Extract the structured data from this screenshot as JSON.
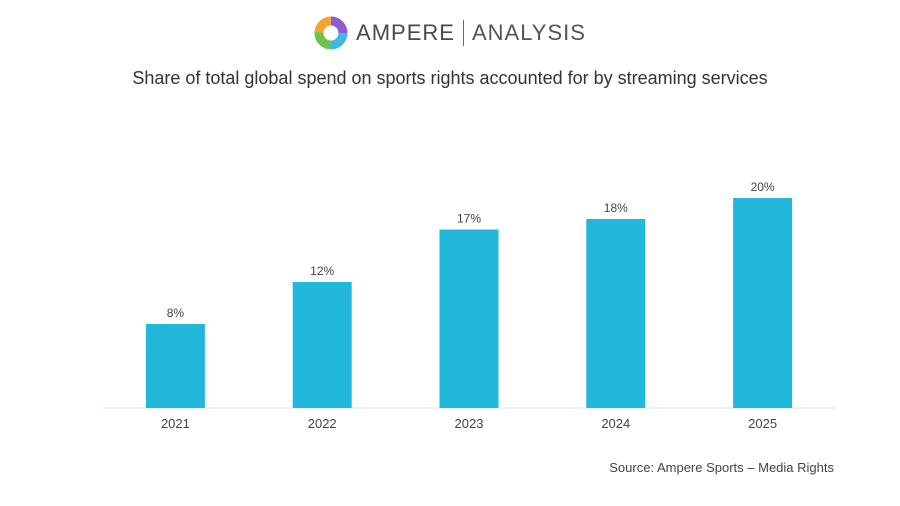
{
  "logo": {
    "brand": "AMPERE",
    "sub": "ANALYSIS",
    "colors": [
      "#8e5ad6",
      "#3fb8e3",
      "#f3a42c",
      "#6cc24a"
    ]
  },
  "chart_data": {
    "type": "bar",
    "title": "Share of total global spend on sports rights accounted for by streaming services",
    "categories": [
      "2021",
      "2022",
      "2023",
      "2024",
      "2025"
    ],
    "values": [
      8,
      12,
      17,
      18,
      20
    ],
    "data_labels": [
      "8%",
      "12%",
      "17%",
      "18%",
      "20%"
    ],
    "unit": "%",
    "ylim": [
      0,
      20
    ],
    "grid": false,
    "legend": "none",
    "bar_color": "#22b8dc"
  },
  "source": "Source: Ampere Sports – Media Rights"
}
